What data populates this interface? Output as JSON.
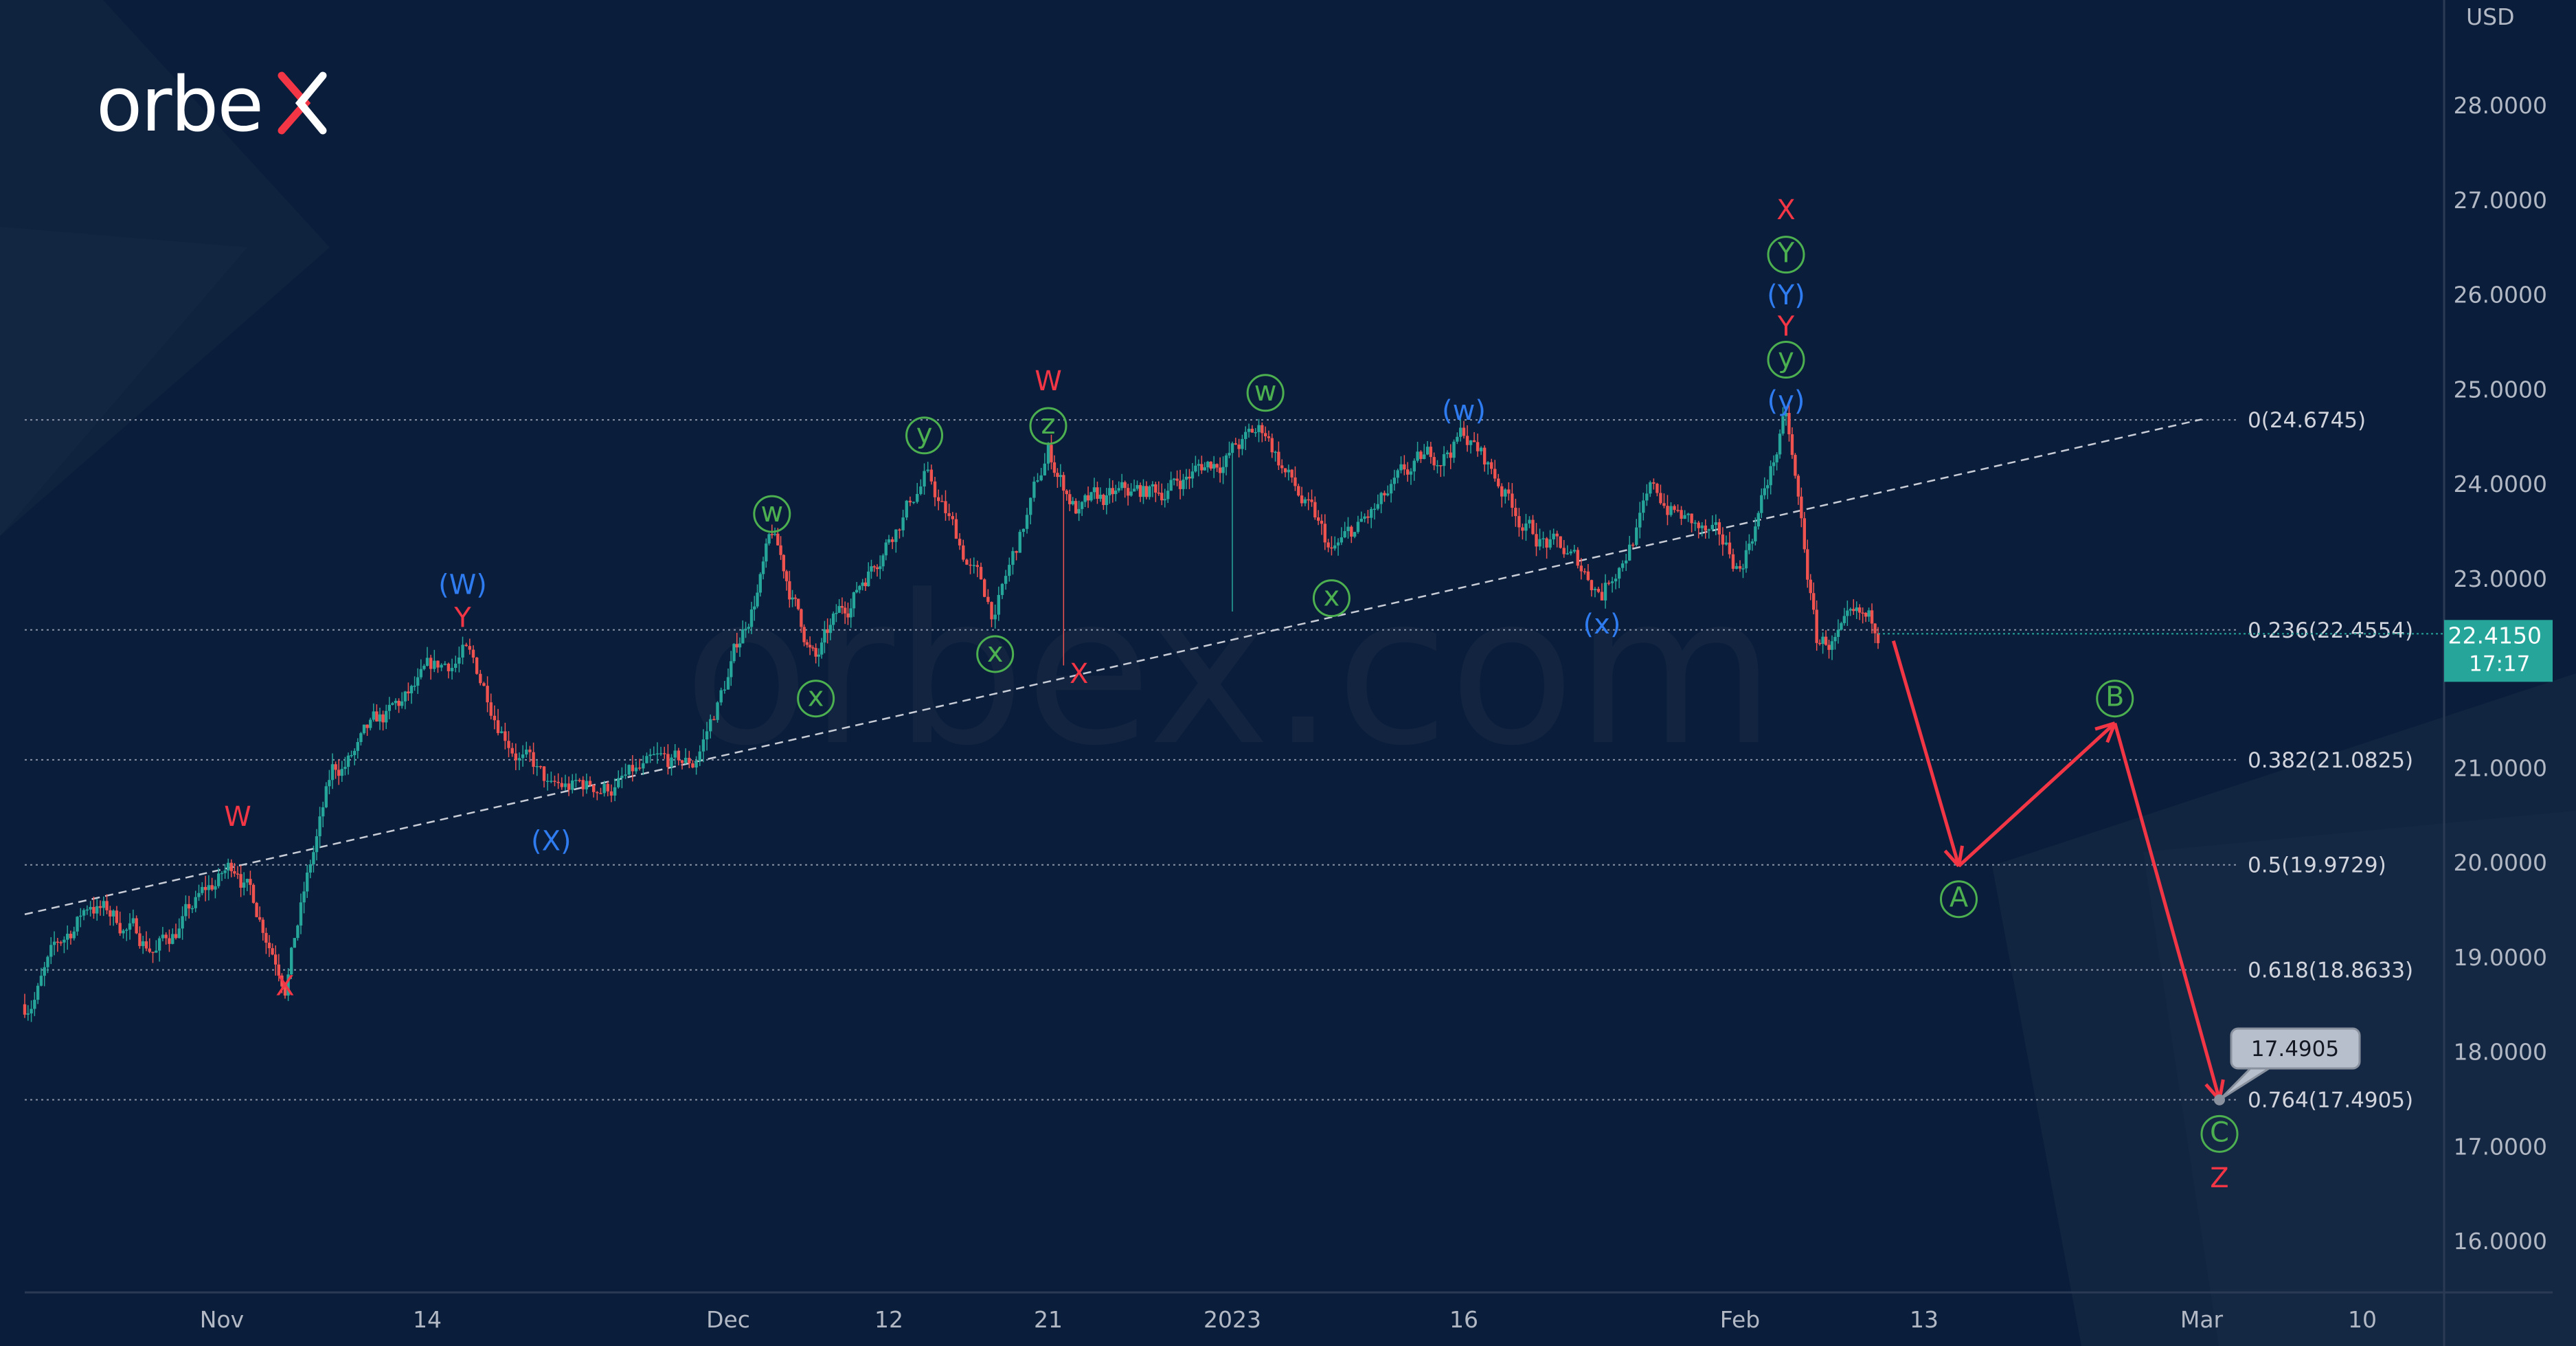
{
  "brand": {
    "logo_text": "orbex",
    "watermark": "orbex.com"
  },
  "chart_data": {
    "type": "candlestick",
    "currency_label": "USD",
    "y_ticks": [
      "28.0000",
      "27.0000",
      "26.0000",
      "25.0000",
      "24.0000",
      "23.0000",
      "21.0000",
      "20.0000",
      "19.0000",
      "18.0000",
      "17.0000",
      "16.0000"
    ],
    "ylim": [
      15.6,
      28.9
    ],
    "x_ticks": [
      {
        "date": "2022-11-01",
        "label": "Nov"
      },
      {
        "date": "2022-11-14",
        "label": "14"
      },
      {
        "date": "2022-12-01",
        "label": "Dec"
      },
      {
        "date": "2022-12-12",
        "label": "12"
      },
      {
        "date": "2022-12-21",
        "label": "21"
      },
      {
        "date": "2023-01-02",
        "label": "2023"
      },
      {
        "date": "2023-01-16",
        "label": "16"
      },
      {
        "date": "2023-02-01",
        "label": "Feb"
      },
      {
        "date": "2023-02-13",
        "label": "13"
      },
      {
        "date": "2023-03-01",
        "label": "Mar"
      },
      {
        "date": "2023-03-10",
        "label": "10"
      }
    ],
    "price_path": [
      [
        "2022-10-20",
        18.5
      ],
      [
        "2022-10-24",
        19.6
      ],
      [
        "2022-10-28",
        19.1
      ],
      [
        "2022-11-02",
        20.0
      ],
      [
        "2022-11-05",
        18.87
      ],
      [
        "2022-11-08",
        20.9
      ],
      [
        "2022-11-16",
        22.2
      ],
      [
        "2022-11-21",
        20.7
      ],
      [
        "2022-11-29",
        21.0
      ],
      [
        "2022-12-04",
        23.4
      ],
      [
        "2022-12-07",
        22.1
      ],
      [
        "2022-12-14",
        24.1
      ],
      [
        "2022-12-18",
        22.6
      ],
      [
        "2022-12-21",
        24.3
      ],
      [
        "2022-12-23",
        23.7
      ],
      [
        "2022-12-28",
        23.9
      ],
      [
        "2023-01-04",
        24.55
      ],
      [
        "2023-01-08",
        23.2
      ],
      [
        "2023-01-12",
        23.9
      ],
      [
        "2023-01-16",
        24.55
      ],
      [
        "2023-01-20",
        23.5
      ],
      [
        "2023-01-24",
        22.9
      ],
      [
        "2023-01-27",
        23.9
      ],
      [
        "2023-02-01",
        23.1
      ],
      [
        "2023-02-04",
        24.67
      ],
      [
        "2023-02-05",
        23.5
      ],
      [
        "2023-02-06",
        22.3
      ],
      [
        "2023-02-10",
        22.42
      ]
    ],
    "spikes": [
      {
        "date": "2022-12-22",
        "low": 22.08
      },
      {
        "date": "2023-01-02",
        "low": 22.65
      },
      {
        "date": "2023-01-24",
        "low": 22.77
      }
    ],
    "current_price": {
      "value": "22.4150",
      "countdown": "17:17",
      "color": "#26a69a"
    },
    "trendline": {
      "from": [
        "2022-10-20",
        19.45
      ],
      "to": [
        "2023-03-01",
        24.68
      ]
    },
    "fib_levels": [
      {
        "price": 24.6745,
        "label": "0(24.6745)"
      },
      {
        "price": 22.4554,
        "label": "0.236(22.4554)"
      },
      {
        "price": 21.0825,
        "label": "0.382(21.0825)"
      },
      {
        "price": 19.9729,
        "label": "0.5(19.9729)"
      },
      {
        "price": 18.8633,
        "label": "0.618(18.8633)"
      },
      {
        "price": 17.4905,
        "label": "0.764(17.4905)"
      }
    ],
    "projection": [
      [
        "2023-02-11",
        22.34
      ],
      [
        "2023-02-15",
        19.96
      ],
      [
        "2023-02-24",
        21.47
      ],
      [
        "2023-03-02",
        17.49
      ]
    ],
    "target_callout": "17.4905",
    "wave_labels": [
      {
        "text": "W",
        "style": "red",
        "date": "2022-11-02",
        "price": 20.48
      },
      {
        "text": "X",
        "style": "red",
        "date": "2022-11-05",
        "price": 18.69
      },
      {
        "text": "Y",
        "style": "red",
        "date": "2022-11-16",
        "price": 22.58
      },
      {
        "text": "(W)",
        "style": "blue",
        "date": "2022-11-16",
        "price": 22.93
      },
      {
        "text": "(X)",
        "style": "blue",
        "date": "2022-11-21",
        "price": 20.22
      },
      {
        "text": "w",
        "style": "green",
        "date": "2022-12-04",
        "price": 23.68
      },
      {
        "text": "x",
        "style": "green",
        "date": "2022-12-07",
        "price": 21.73
      },
      {
        "text": "y",
        "style": "green",
        "date": "2022-12-14",
        "price": 24.51
      },
      {
        "text": "x",
        "style": "green",
        "date": "2022-12-18",
        "price": 22.2
      },
      {
        "text": "z",
        "style": "green",
        "date": "2022-12-21",
        "price": 24.61
      },
      {
        "text": "W",
        "style": "red",
        "date": "2022-12-21",
        "price": 25.08
      },
      {
        "text": "X",
        "style": "red",
        "date": "2022-12-23",
        "price": 21.99
      },
      {
        "text": "w",
        "style": "green",
        "date": "2023-01-04",
        "price": 24.96
      },
      {
        "text": "x",
        "style": "green",
        "date": "2023-01-08",
        "price": 22.79
      },
      {
        "text": "(w)",
        "style": "blue",
        "date": "2023-01-16",
        "price": 24.77
      },
      {
        "text": "(x)",
        "style": "blue",
        "date": "2023-01-24",
        "price": 22.51
      },
      {
        "text": "X",
        "style": "red",
        "date": "2023-02-04",
        "price": 26.89
      },
      {
        "text": "Y",
        "style": "green",
        "date": "2023-02-04",
        "price": 26.42
      },
      {
        "text": "(Y)",
        "style": "blue",
        "date": "2023-02-04",
        "price": 25.99
      },
      {
        "text": "Y",
        "style": "red",
        "date": "2023-02-04",
        "price": 25.66
      },
      {
        "text": "y",
        "style": "green",
        "date": "2023-02-04",
        "price": 25.31
      },
      {
        "text": "(y)",
        "style": "blue",
        "date": "2023-02-04",
        "price": 24.87
      },
      {
        "text": "A",
        "style": "green",
        "date": "2023-02-15",
        "price": 19.61
      },
      {
        "text": "B",
        "style": "green",
        "date": "2023-02-24",
        "price": 21.73
      },
      {
        "text": "C",
        "style": "green",
        "date": "2023-03-02",
        "price": 17.13
      },
      {
        "text": "Z",
        "style": "red",
        "date": "2023-03-02",
        "price": 16.66
      }
    ],
    "colors": {
      "up": "#26a69a",
      "down": "#ef5350",
      "red_label": "#f23645",
      "blue_label": "#2f7bf0",
      "green_label": "#4caf50",
      "projection": "#f23645",
      "background": "#0a1d3a"
    }
  }
}
